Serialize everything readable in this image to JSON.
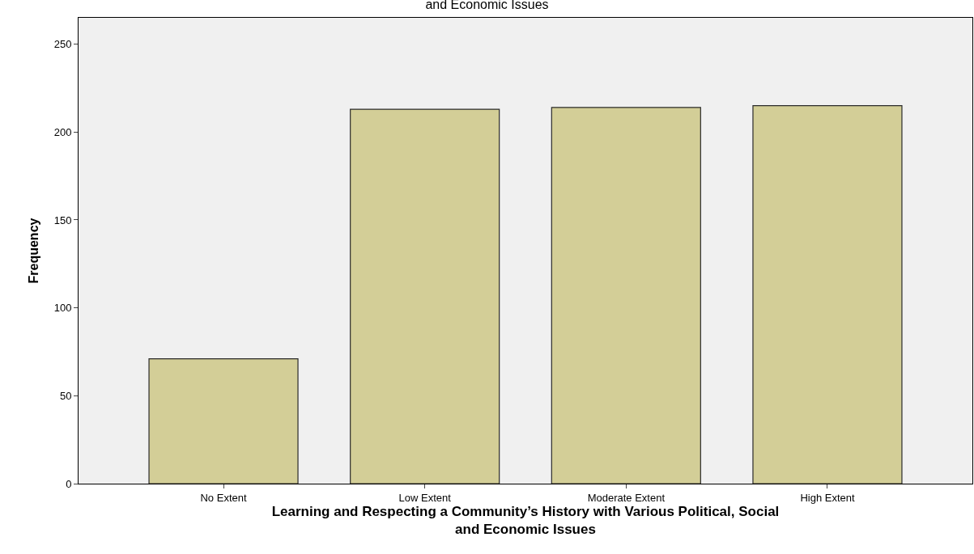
{
  "chart_data": {
    "type": "bar",
    "title": "and Economic Issues",
    "xlabel": "Learning and Respecting a Community’s History with Various Political, Social and Economic Issues",
    "ylabel": "Frequency",
    "categories": [
      "No Extent",
      "Low Extent",
      "Moderate Extent",
      "High Extent"
    ],
    "values": [
      71,
      213,
      214,
      215
    ],
    "color": "#d3ce97",
    "ylim": [
      0,
      265
    ],
    "yticks": [
      0,
      50,
      100,
      150,
      200,
      250
    ],
    "grid": false
  }
}
